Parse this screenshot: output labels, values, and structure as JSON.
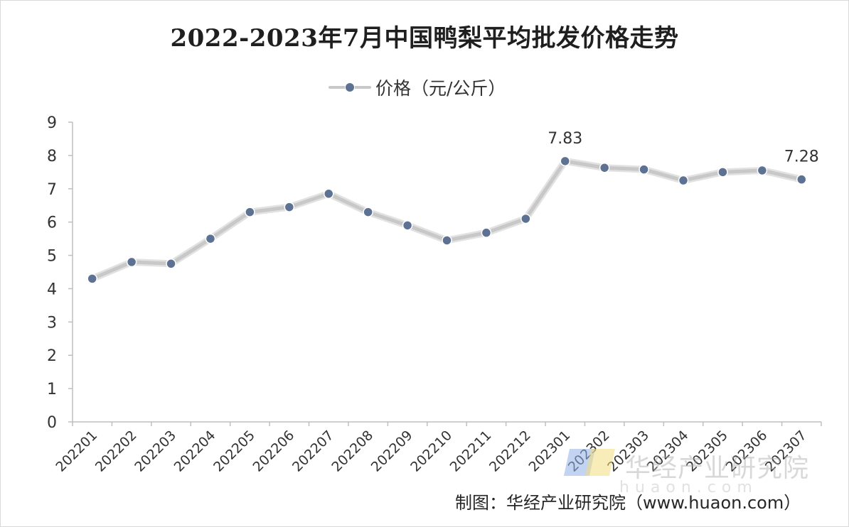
{
  "chart_data": {
    "type": "line",
    "title": "2022-2023年7月中国鸭梨平均批发价格走势",
    "xlabel": "",
    "ylabel": "",
    "ylim": [
      0,
      9
    ],
    "yticks": [
      0,
      1,
      2,
      3,
      4,
      5,
      6,
      7,
      8,
      9
    ],
    "categories": [
      "202201",
      "202202",
      "202203",
      "202204",
      "202205",
      "202206",
      "202207",
      "202208",
      "202209",
      "202210",
      "202211",
      "202212",
      "202301",
      "202302",
      "202303",
      "202304",
      "202305",
      "202306",
      "202307"
    ],
    "series": [
      {
        "name": "价格（元/公斤）",
        "values": [
          4.3,
          4.8,
          4.75,
          5.5,
          6.3,
          6.45,
          6.85,
          6.3,
          5.9,
          5.45,
          5.68,
          6.1,
          7.83,
          7.63,
          7.58,
          7.25,
          7.5,
          7.55,
          7.28
        ]
      }
    ],
    "data_labels": [
      {
        "index": 12,
        "text": "7.83"
      },
      {
        "index": 18,
        "text": "7.28"
      }
    ],
    "grid": false,
    "legend_position": "top-center"
  },
  "colors": {
    "line": "#c8c8c8",
    "marker": "#5d7193",
    "axis": "#bfbfbf",
    "text": "#333333"
  },
  "legend": {
    "label": "价格（元/公斤）"
  },
  "source": {
    "text": "制图：华经产业研究院（www.huaon.com）"
  },
  "watermark": {
    "text": "华经产业研究院",
    "url": "huaon.com"
  }
}
